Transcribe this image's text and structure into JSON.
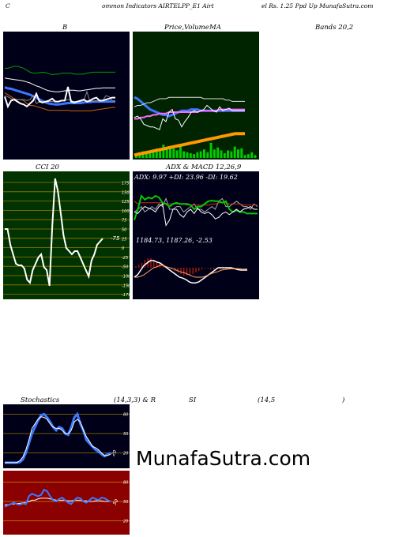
{
  "header": {
    "left": "C",
    "middle": "ommon  Indicators AIRTELPP_E1 Airt",
    "right": "el Rs. 1.25 Ppd Up MunafaSutra.com"
  },
  "titles": {
    "bands": "B",
    "price": "Price,",
    "volume": "Volume",
    "ma": "MA",
    "bands_params": "Bands 20,2",
    "cci": "CCI 20",
    "adx_macd": "ADX  & MACD 12,26,9",
    "adx_values": "ADX: 9.97  +DI: 23.96  -DI: 19.62",
    "macd_values": "1184.73,   1187.26,   -2.53",
    "stochastics": "Stochastics",
    "stoch_params": "(14,3,3) & R",
    "rsi": "SI",
    "rsi_params": "(14,5",
    "rsi_close": ")"
  },
  "watermark": "MunafaSutra.com",
  "colors": {
    "dark_panel": "#000018",
    "green_panel": "#002400",
    "cci_panel": "#003300",
    "rsi_panel": "#8b0000",
    "blue_line": "#3c78ff",
    "orange_line": "#ff9900",
    "green_line": "#00cc00"
  },
  "chart_data": [
    {
      "type": "line",
      "name": "bollinger",
      "series": [
        {
          "values": [
            62,
            62,
            60,
            58,
            58,
            60,
            62,
            66,
            70,
            72,
            72,
            71,
            70,
            71,
            73,
            75,
            74,
            74,
            72,
            72,
            72,
            72,
            74,
            74,
            74,
            74,
            72,
            71,
            70,
            70,
            70,
            70,
            70,
            70,
            70,
            70
          ]
        },
        {
          "values": [
            82,
            83,
            84,
            85,
            86,
            87,
            88,
            90,
            92,
            95,
            98,
            100,
            103,
            106,
            108,
            109,
            110,
            110,
            109,
            108,
            107,
            107,
            107,
            108,
            108,
            107,
            106,
            105,
            104,
            103,
            103,
            102,
            102,
            102,
            102,
            102
          ]
        },
        {
          "values": [
            101,
            103,
            104,
            106,
            108,
            110,
            112,
            114,
            116,
            119,
            122,
            126,
            129,
            132,
            134,
            135,
            136,
            136,
            135,
            134,
            133,
            133,
            133,
            133,
            133,
            132,
            131,
            131,
            130,
            130,
            130,
            130,
            130,
            130,
            130,
            130
          ]
        },
        {
          "values": [
            112,
            116,
            120,
            124,
            126,
            126,
            128,
            134,
            138,
            138,
            140,
            142,
            144,
            146,
            148,
            148,
            148,
            148,
            148,
            148,
            148,
            149,
            149,
            149,
            149,
            149,
            149,
            149,
            148,
            147,
            146,
            145,
            144,
            143,
            142,
            142
          ]
        },
        {
          "values": [
            118,
            120,
            124,
            126,
            126,
            126,
            126,
            128,
            126,
            118,
            134,
            130,
            130,
            132,
            130,
            130,
            130,
            130,
            128,
            128,
            126,
            128,
            130,
            130,
            130,
            128,
            110,
            130,
            130,
            128,
            130,
            128,
            118,
            120,
            128,
            130
          ]
        },
        {
          "values": [
            120,
            140,
            128,
            126,
            130,
            134,
            136,
            140,
            134,
            128,
            114,
            130,
            132,
            130,
            128,
            124,
            130,
            130,
            128,
            128,
            100,
            130,
            132,
            130,
            128,
            126,
            130,
            128,
            124,
            122,
            128,
            128,
            126,
            124,
            122,
            122
          ]
        }
      ]
    },
    {
      "type": "line",
      "name": "price-ma",
      "series": [
        {
          "values": [
            98,
            100,
            104,
            108,
            112,
            116,
            118,
            120,
            122,
            124,
            124,
            126,
            124,
            122,
            120,
            118,
            118,
            118,
            116,
            116,
            116,
            118,
            118,
            118,
            118,
            118,
            118,
            118,
            118,
            118,
            118,
            118,
            118,
            118,
            118,
            118
          ]
        },
        {
          "values": [
            112,
            110,
            110,
            108,
            106,
            106,
            104,
            102,
            100,
            100,
            100,
            98,
            98,
            98,
            98,
            98,
            98,
            98,
            98,
            98,
            98,
            98,
            100,
            100,
            100,
            100,
            100,
            100,
            100,
            102,
            102,
            104,
            104,
            104,
            104,
            104
          ]
        },
        {
          "values": [
            130,
            130,
            128,
            128,
            126,
            126,
            124,
            124,
            122,
            122,
            122,
            120,
            120,
            120,
            120,
            120,
            120,
            120,
            120,
            120,
            120,
            118,
            118,
            118,
            118,
            118,
            118,
            116,
            116,
            116,
            116,
            116,
            116,
            116,
            116,
            116
          ]
        },
        {
          "values": [
            128,
            126,
            130,
            138,
            140,
            142,
            142,
            144,
            146,
            130,
            134,
            120,
            116,
            130,
            132,
            142,
            134,
            128,
            120,
            118,
            120,
            118,
            116,
            110,
            114,
            118,
            120,
            112,
            118,
            116,
            114,
            118,
            118,
            118,
            118,
            118
          ]
        },
        {
          "values": [
            184,
            183,
            182,
            181,
            180,
            179,
            178,
            177,
            176,
            175,
            174,
            173,
            172,
            171,
            170,
            169,
            168,
            167,
            166,
            165,
            164,
            163,
            162,
            161,
            160,
            159,
            158,
            157,
            156,
            155,
            154,
            153,
            152,
            152,
            152,
            152
          ]
        },
        {
          "values": [
            5,
            6,
            7,
            6,
            8,
            9,
            10,
            9,
            14,
            11,
            12,
            10,
            8,
            14,
            7,
            6,
            5,
            4,
            6,
            7,
            9,
            6,
            16,
            9,
            11,
            8,
            5,
            8,
            7,
            12,
            9,
            10,
            3,
            4,
            6,
            3
          ]
        }
      ]
    },
    {
      "type": "line",
      "name": "cci",
      "ticks": [
        "175",
        "150",
        "125",
        "100",
        "75",
        "50",
        "25",
        "0",
        "-25",
        "-50",
        "-100",
        "-150",
        "-175"
      ],
      "last_label": "-75",
      "values": [
        30,
        30,
        -20,
        -50,
        -80,
        -85,
        -85,
        -95,
        -130,
        -140,
        -100,
        -80,
        -60,
        -50,
        -90,
        -100,
        -150,
        40,
        190,
        150,
        80,
        10,
        -30,
        -40,
        -50,
        -40,
        -40,
        -60,
        -80,
        -100,
        -120,
        -70,
        -50,
        -20,
        -10,
        0
      ]
    },
    {
      "type": "line",
      "name": "adx",
      "series": [
        {
          "values": [
            0.45,
            0.5,
            0.55,
            0.45,
            0.5,
            0.55,
            0.5,
            0.6,
            0.55,
            0.7,
            0.5,
            0.5,
            0.55,
            0.55,
            0.45,
            0.5,
            0.55,
            0.6,
            0.5,
            0.5,
            0.45,
            0.5,
            0.55,
            0.5,
            0.65,
            0.7,
            0.55,
            0.55,
            0.6,
            0.65,
            0.6,
            0.55,
            0.55,
            0.5,
            0.6,
            0.55
          ]
        },
        {
          "values": [
            0.65,
            0.6,
            0.62,
            0.62,
            0.62,
            0.62,
            0.62,
            0.62,
            0.62,
            0.6,
            0.6,
            0.6,
            0.6,
            0.6,
            0.6,
            0.58,
            0.58,
            0.58,
            0.58,
            0.58,
            0.58,
            0.58,
            0.6,
            0.6,
            0.62,
            0.62,
            0.62,
            0.6,
            0.6,
            0.6,
            0.6,
            0.58,
            0.58,
            0.58,
            0.58,
            0.58
          ]
        },
        {
          "values": [
            0.3,
            0.5,
            0.75,
            0.68,
            0.72,
            0.7,
            0.75,
            0.72,
            0.62,
            0.6,
            0.55,
            0.6,
            0.62,
            0.6,
            0.6,
            0.6,
            0.58,
            0.5,
            0.55,
            0.55,
            0.6,
            0.65,
            0.66,
            0.65,
            0.65,
            0.62,
            0.65,
            0.5,
            0.45,
            0.48,
            0.45,
            0.45,
            0.42,
            0.42,
            0.42,
            0.42
          ]
        },
        {
          "values": [
            0.45,
            0.42,
            0.5,
            0.55,
            0.52,
            0.5,
            0.45,
            0.55,
            0.6,
            0.2,
            0.3,
            0.5,
            0.5,
            0.4,
            0.35,
            0.45,
            0.5,
            0.42,
            0.52,
            0.45,
            0.42,
            0.45,
            0.4,
            0.32,
            0.35,
            0.42,
            0.45,
            0.4,
            0.45,
            0.5,
            0.45,
            0.5,
            0.52,
            0.55,
            0.5,
            0.5
          ]
        }
      ]
    },
    {
      "type": "line",
      "name": "macd",
      "series": [
        {
          "values": [
            0.3,
            0.35,
            0.45,
            0.55,
            0.6,
            0.65,
            0.65,
            0.62,
            0.6,
            0.55,
            0.5,
            0.45,
            0.4,
            0.35,
            0.3,
            0.28,
            0.25,
            0.2,
            0.18,
            0.18,
            0.2,
            0.25,
            0.3,
            0.35,
            0.4,
            0.45,
            0.5,
            0.5,
            0.5,
            0.5,
            0.5,
            0.48,
            0.46,
            0.45,
            0.45,
            0.45
          ]
        },
        {
          "values": [
            0.3,
            0.3,
            0.32,
            0.35,
            0.4,
            0.45,
            0.5,
            0.52,
            0.55,
            0.55,
            0.52,
            0.5,
            0.48,
            0.45,
            0.42,
            0.4,
            0.38,
            0.35,
            0.32,
            0.3,
            0.3,
            0.3,
            0.32,
            0.35,
            0.38,
            0.4,
            0.42,
            0.45,
            0.46,
            0.47,
            0.48,
            0.48,
            0.48,
            0.47,
            0.47,
            0.47
          ]
        },
        {
          "values": [
            -0.05,
            -0.1,
            -0.15,
            -0.25,
            -0.3,
            -0.3,
            -0.25,
            -0.2,
            -0.15,
            -0.1,
            -0.05,
            0,
            0.05,
            0.1,
            0.15,
            0.2,
            0.25,
            0.25,
            0.22,
            0.2,
            0.15,
            0.1,
            0.05,
            0.02,
            0.02,
            0.05,
            0.05,
            0.05,
            0.05,
            0.04,
            0.04,
            0.03,
            0.02,
            0.02,
            0.02,
            0.02
          ]
        }
      ]
    },
    {
      "type": "line",
      "name": "stochastics",
      "ticks": [
        "80",
        "50",
        "20"
      ],
      "last_label": "20",
      "series": [
        {
          "values": [
            5,
            5,
            5,
            5,
            5,
            6,
            10,
            20,
            35,
            50,
            60,
            70,
            78,
            80,
            75,
            68,
            60,
            55,
            60,
            58,
            50,
            48,
            60,
            75,
            80,
            65,
            55,
            40,
            35,
            30,
            25,
            22,
            18,
            15,
            18,
            20
          ]
        },
        {
          "values": [
            5,
            5,
            5,
            5,
            5,
            8,
            14,
            25,
            40,
            58,
            65,
            72,
            76,
            75,
            72,
            65,
            60,
            58,
            58,
            55,
            50,
            50,
            55,
            68,
            72,
            68,
            55,
            45,
            38,
            30,
            28,
            25,
            20,
            16,
            16,
            18
          ]
        }
      ]
    },
    {
      "type": "line",
      "name": "rsi",
      "ticks": [
        "80",
        "50",
        "20"
      ],
      "last_label": "50",
      "series": [
        {
          "values": [
            45,
            45,
            46,
            46,
            47,
            47,
            48,
            48,
            50,
            52,
            52,
            54,
            55,
            55,
            55,
            54,
            53,
            52,
            52,
            52,
            52,
            51,
            51,
            52,
            52,
            52,
            51,
            51,
            50,
            50,
            51,
            51,
            51,
            50,
            50,
            50
          ]
        },
        {
          "values": [
            42,
            44,
            46,
            48,
            46,
            45,
            47,
            46,
            58,
            62,
            60,
            58,
            60,
            68,
            66,
            58,
            52,
            50,
            54,
            56,
            52,
            48,
            46,
            52,
            56,
            55,
            50,
            48,
            52,
            56,
            54,
            52,
            56,
            55,
            52,
            50
          ]
        }
      ]
    }
  ]
}
